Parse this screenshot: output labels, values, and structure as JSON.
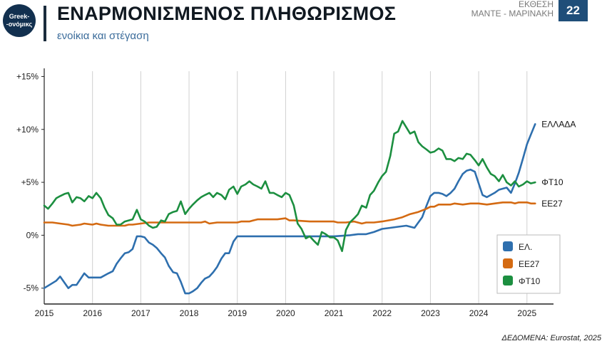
{
  "header": {
    "logo_line1": "Greek-",
    "logo_line2": "-ονόμικς",
    "title": "ΕΝΑΡΜΟΝΙΣΜΕΝΟΣ ΠΛΗΘΩΡΙΣΜΟΣ",
    "subtitle": "ενοίκια και στέγαση",
    "report_line1": "ΕΚΘΕΣΗ",
    "report_line2": "ΜΑΝΤΕ - ΜΑΡΙΝΑΚΗ",
    "page_number": "22"
  },
  "footer": {
    "source": "ΔΕΔΟΜΕΝΑ: Eurostat, 2025"
  },
  "chart_data": {
    "type": "line",
    "title": "ΕΝΑΡΜΟΝΙΣΜΕΝΟΣ ΠΛΗΘΩΡΙΣΜΟΣ",
    "subtitle": "ενοίκια και στέγαση",
    "xlabel": "",
    "ylabel": "",
    "xlim": [
      2015,
      2025.55
    ],
    "ylim": [
      -6.5,
      15.5
    ],
    "x_ticks": [
      "2015",
      "2016",
      "2017",
      "2018",
      "2019",
      "2020",
      "2021",
      "2022",
      "2023",
      "2024",
      "2025"
    ],
    "y_ticks": [
      {
        "value": 15,
        "label": "+15%"
      },
      {
        "value": 10,
        "label": "+10%"
      },
      {
        "value": 5,
        "label": "+5%"
      },
      {
        "value": 0,
        "label": "0%"
      },
      {
        "value": -5,
        "label": "-5%"
      }
    ],
    "grid": "vertical",
    "legend_position": "bottom-right",
    "series": [
      {
        "name": "ΕΛ.",
        "end_label": "ΕΛΛΑΔΑ",
        "color": "#2e6fae",
        "points": [
          [
            2015.0,
            -5.0
          ],
          [
            2015.25,
            -4.3
          ],
          [
            2015.33,
            -3.9
          ],
          [
            2015.5,
            -5.0
          ],
          [
            2015.58,
            -4.7
          ],
          [
            2015.67,
            -4.7
          ],
          [
            2015.83,
            -3.6
          ],
          [
            2015.92,
            -4.0
          ],
          [
            2016.17,
            -4.0
          ],
          [
            2016.33,
            -3.6
          ],
          [
            2016.42,
            -3.4
          ],
          [
            2016.5,
            -2.7
          ],
          [
            2016.58,
            -2.2
          ],
          [
            2016.67,
            -1.7
          ],
          [
            2016.75,
            -1.6
          ],
          [
            2016.83,
            -1.3
          ],
          [
            2016.92,
            -0.1
          ],
          [
            2017.0,
            -0.1
          ],
          [
            2017.08,
            -0.2
          ],
          [
            2017.17,
            -0.7
          ],
          [
            2017.25,
            -0.9
          ],
          [
            2017.33,
            -1.2
          ],
          [
            2017.42,
            -1.7
          ],
          [
            2017.5,
            -2.1
          ],
          [
            2017.58,
            -2.9
          ],
          [
            2017.67,
            -3.5
          ],
          [
            2017.75,
            -3.6
          ],
          [
            2017.83,
            -4.4
          ],
          [
            2017.92,
            -5.5
          ],
          [
            2018.0,
            -5.5
          ],
          [
            2018.08,
            -5.3
          ],
          [
            2018.17,
            -5.0
          ],
          [
            2018.25,
            -4.5
          ],
          [
            2018.33,
            -4.1
          ],
          [
            2018.42,
            -3.9
          ],
          [
            2018.5,
            -3.5
          ],
          [
            2018.58,
            -3.0
          ],
          [
            2018.67,
            -2.2
          ],
          [
            2018.75,
            -1.7
          ],
          [
            2018.83,
            -1.7
          ],
          [
            2018.92,
            -0.6
          ],
          [
            2019.0,
            -0.1
          ],
          [
            2020.0,
            -0.1
          ],
          [
            2021.0,
            -0.1
          ],
          [
            2021.33,
            0.0
          ],
          [
            2021.5,
            0.1
          ],
          [
            2021.67,
            0.1
          ],
          [
            2021.83,
            0.3
          ],
          [
            2022.0,
            0.6
          ],
          [
            2022.17,
            0.7
          ],
          [
            2022.33,
            0.8
          ],
          [
            2022.5,
            0.9
          ],
          [
            2022.67,
            0.7
          ],
          [
            2022.75,
            1.2
          ],
          [
            2022.83,
            1.7
          ],
          [
            2022.92,
            2.8
          ],
          [
            2023.0,
            3.7
          ],
          [
            2023.08,
            4.0
          ],
          [
            2023.17,
            4.0
          ],
          [
            2023.25,
            3.9
          ],
          [
            2023.33,
            3.7
          ],
          [
            2023.42,
            4.0
          ],
          [
            2023.5,
            4.4
          ],
          [
            2023.58,
            5.1
          ],
          [
            2023.67,
            5.8
          ],
          [
            2023.75,
            6.1
          ],
          [
            2023.83,
            6.2
          ],
          [
            2023.92,
            6.0
          ],
          [
            2024.0,
            4.9
          ],
          [
            2024.08,
            3.8
          ],
          [
            2024.17,
            3.6
          ],
          [
            2024.25,
            3.8
          ],
          [
            2024.33,
            4.0
          ],
          [
            2024.42,
            4.3
          ],
          [
            2024.5,
            4.4
          ],
          [
            2024.58,
            4.5
          ],
          [
            2024.67,
            4.0
          ],
          [
            2024.75,
            4.9
          ],
          [
            2024.83,
            5.9
          ],
          [
            2024.92,
            7.3
          ],
          [
            2025.0,
            8.6
          ],
          [
            2025.08,
            9.5
          ],
          [
            2025.17,
            10.5
          ]
        ]
      },
      {
        "name": "ΕΕ27",
        "end_label": "ΕΕ27",
        "color": "#d46a12",
        "points": [
          [
            2015.0,
            1.2
          ],
          [
            2015.17,
            1.2
          ],
          [
            2015.33,
            1.1
          ],
          [
            2015.5,
            1.0
          ],
          [
            2015.58,
            0.9
          ],
          [
            2015.75,
            1.0
          ],
          [
            2015.83,
            1.1
          ],
          [
            2016.0,
            1.0
          ],
          [
            2016.08,
            1.1
          ],
          [
            2016.17,
            1.0
          ],
          [
            2016.33,
            0.9
          ],
          [
            2016.5,
            0.9
          ],
          [
            2016.67,
            0.9
          ],
          [
            2016.75,
            1.0
          ],
          [
            2016.83,
            1.0
          ],
          [
            2017.0,
            1.1
          ],
          [
            2017.17,
            1.2
          ],
          [
            2017.5,
            1.2
          ],
          [
            2017.75,
            1.2
          ],
          [
            2018.0,
            1.2
          ],
          [
            2018.25,
            1.2
          ],
          [
            2018.33,
            1.3
          ],
          [
            2018.42,
            1.1
          ],
          [
            2018.58,
            1.2
          ],
          [
            2019.0,
            1.2
          ],
          [
            2019.08,
            1.3
          ],
          [
            2019.25,
            1.3
          ],
          [
            2019.33,
            1.4
          ],
          [
            2019.42,
            1.5
          ],
          [
            2019.58,
            1.5
          ],
          [
            2019.83,
            1.5
          ],
          [
            2020.0,
            1.6
          ],
          [
            2020.08,
            1.4
          ],
          [
            2020.17,
            1.4
          ],
          [
            2020.5,
            1.3
          ],
          [
            2020.83,
            1.3
          ],
          [
            2021.0,
            1.3
          ],
          [
            2021.08,
            1.2
          ],
          [
            2021.25,
            1.2
          ],
          [
            2021.42,
            1.3
          ],
          [
            2021.58,
            1.1
          ],
          [
            2021.67,
            1.2
          ],
          [
            2021.83,
            1.2
          ],
          [
            2022.0,
            1.3
          ],
          [
            2022.25,
            1.5
          ],
          [
            2022.42,
            1.7
          ],
          [
            2022.58,
            2.0
          ],
          [
            2022.75,
            2.2
          ],
          [
            2022.92,
            2.5
          ],
          [
            2023.0,
            2.7
          ],
          [
            2023.08,
            2.7
          ],
          [
            2023.17,
            2.9
          ],
          [
            2023.42,
            2.9
          ],
          [
            2023.5,
            3.0
          ],
          [
            2023.67,
            2.9
          ],
          [
            2023.83,
            3.0
          ],
          [
            2024.0,
            3.0
          ],
          [
            2024.17,
            2.9
          ],
          [
            2024.33,
            3.0
          ],
          [
            2024.5,
            3.1
          ],
          [
            2024.67,
            3.1
          ],
          [
            2024.75,
            3.0
          ],
          [
            2024.83,
            3.1
          ],
          [
            2025.0,
            3.1
          ],
          [
            2025.08,
            3.0
          ],
          [
            2025.17,
            3.0
          ]
        ]
      },
      {
        "name": "ΦΤ10",
        "end_label": "ΦΤ10",
        "color": "#1c8f40",
        "points": [
          [
            2015.0,
            2.8
          ],
          [
            2015.08,
            2.5
          ],
          [
            2015.17,
            3.0
          ],
          [
            2015.25,
            3.5
          ],
          [
            2015.33,
            3.7
          ],
          [
            2015.42,
            3.9
          ],
          [
            2015.5,
            4.0
          ],
          [
            2015.58,
            3.1
          ],
          [
            2015.67,
            3.6
          ],
          [
            2015.75,
            3.5
          ],
          [
            2015.83,
            3.2
          ],
          [
            2015.92,
            3.7
          ],
          [
            2016.0,
            3.5
          ],
          [
            2016.08,
            4.0
          ],
          [
            2016.17,
            3.5
          ],
          [
            2016.25,
            2.6
          ],
          [
            2016.33,
            1.9
          ],
          [
            2016.42,
            1.6
          ],
          [
            2016.5,
            1.0
          ],
          [
            2016.58,
            1.0
          ],
          [
            2016.67,
            1.3
          ],
          [
            2016.75,
            1.4
          ],
          [
            2016.83,
            1.5
          ],
          [
            2016.92,
            2.4
          ],
          [
            2017.0,
            1.5
          ],
          [
            2017.08,
            1.3
          ],
          [
            2017.17,
            0.9
          ],
          [
            2017.25,
            0.7
          ],
          [
            2017.33,
            0.8
          ],
          [
            2017.42,
            1.4
          ],
          [
            2017.5,
            1.3
          ],
          [
            2017.58,
            2.0
          ],
          [
            2017.67,
            2.2
          ],
          [
            2017.75,
            2.3
          ],
          [
            2017.83,
            3.2
          ],
          [
            2017.92,
            2.0
          ],
          [
            2018.0,
            2.5
          ],
          [
            2018.08,
            2.9
          ],
          [
            2018.17,
            3.3
          ],
          [
            2018.25,
            3.6
          ],
          [
            2018.33,
            3.8
          ],
          [
            2018.42,
            4.0
          ],
          [
            2018.5,
            3.6
          ],
          [
            2018.58,
            4.0
          ],
          [
            2018.67,
            3.8
          ],
          [
            2018.75,
            3.4
          ],
          [
            2018.83,
            4.3
          ],
          [
            2018.92,
            4.6
          ],
          [
            2019.0,
            3.9
          ],
          [
            2019.08,
            4.6
          ],
          [
            2019.17,
            4.8
          ],
          [
            2019.25,
            5.1
          ],
          [
            2019.33,
            4.8
          ],
          [
            2019.42,
            4.6
          ],
          [
            2019.5,
            4.4
          ],
          [
            2019.58,
            5.1
          ],
          [
            2019.67,
            4.0
          ],
          [
            2019.75,
            4.0
          ],
          [
            2019.83,
            3.8
          ],
          [
            2019.92,
            3.6
          ],
          [
            2020.0,
            4.0
          ],
          [
            2020.08,
            3.8
          ],
          [
            2020.17,
            2.8
          ],
          [
            2020.25,
            1.1
          ],
          [
            2020.33,
            0.6
          ],
          [
            2020.42,
            -0.3
          ],
          [
            2020.5,
            -0.1
          ],
          [
            2020.58,
            -0.5
          ],
          [
            2020.67,
            -0.9
          ],
          [
            2020.75,
            0.3
          ],
          [
            2020.83,
            0.1
          ],
          [
            2020.92,
            -0.2
          ],
          [
            2021.0,
            -0.2
          ],
          [
            2021.08,
            -0.5
          ],
          [
            2021.17,
            -1.5
          ],
          [
            2021.25,
            0.5
          ],
          [
            2021.33,
            1.2
          ],
          [
            2021.42,
            1.6
          ],
          [
            2021.5,
            2.0
          ],
          [
            2021.58,
            2.8
          ],
          [
            2021.67,
            2.6
          ],
          [
            2021.75,
            3.8
          ],
          [
            2021.83,
            4.2
          ],
          [
            2021.92,
            5.0
          ],
          [
            2022.0,
            5.6
          ],
          [
            2022.08,
            6.0
          ],
          [
            2022.17,
            7.5
          ],
          [
            2022.25,
            9.6
          ],
          [
            2022.33,
            9.8
          ],
          [
            2022.42,
            10.8
          ],
          [
            2022.5,
            10.2
          ],
          [
            2022.58,
            9.6
          ],
          [
            2022.67,
            9.8
          ],
          [
            2022.75,
            8.8
          ],
          [
            2022.83,
            8.4
          ],
          [
            2022.92,
            8.1
          ],
          [
            2023.0,
            7.8
          ],
          [
            2023.08,
            7.9
          ],
          [
            2023.17,
            8.2
          ],
          [
            2023.25,
            8.0
          ],
          [
            2023.33,
            7.2
          ],
          [
            2023.42,
            7.2
          ],
          [
            2023.5,
            7.0
          ],
          [
            2023.58,
            7.3
          ],
          [
            2023.67,
            7.2
          ],
          [
            2023.75,
            7.7
          ],
          [
            2023.83,
            7.6
          ],
          [
            2023.92,
            7.1
          ],
          [
            2024.0,
            6.6
          ],
          [
            2024.08,
            7.2
          ],
          [
            2024.17,
            6.4
          ],
          [
            2024.25,
            5.8
          ],
          [
            2024.33,
            5.6
          ],
          [
            2024.42,
            5.1
          ],
          [
            2024.5,
            5.7
          ],
          [
            2024.58,
            5.0
          ],
          [
            2024.67,
            4.7
          ],
          [
            2024.75,
            5.1
          ],
          [
            2024.83,
            4.6
          ],
          [
            2024.92,
            4.8
          ],
          [
            2025.0,
            5.1
          ],
          [
            2025.08,
            4.9
          ],
          [
            2025.17,
            5.0
          ]
        ]
      }
    ]
  }
}
